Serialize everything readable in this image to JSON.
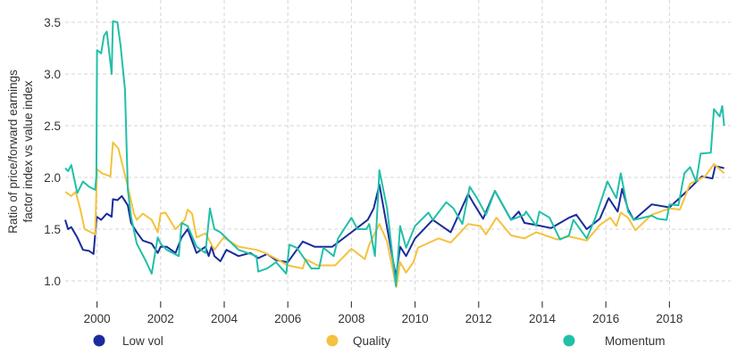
{
  "chart_data": {
    "type": "line",
    "title": "",
    "xlabel": "",
    "ylabel": "Ratio of price/forward earnings factor index vs value index",
    "ylabel_lines": [
      "Ratio of price/forward earnings",
      "factor index vs value index"
    ],
    "xlim": [
      1999.0,
      2019.75
    ],
    "ylim": [
      0.85,
      3.6
    ],
    "x_ticks": [
      2000,
      2002,
      2004,
      2006,
      2008,
      2010,
      2012,
      2014,
      2016,
      2018
    ],
    "x_tick_labels": [
      "2000",
      "2002",
      "2004",
      "2006",
      "2008",
      "2010",
      "2012",
      "2014",
      "2016",
      "2018"
    ],
    "y_ticks": [
      1.0,
      1.5,
      2.0,
      2.5,
      3.0,
      3.5
    ],
    "y_tick_labels": [
      "1.0",
      "1.5",
      "2.0",
      "2.5",
      "3.0",
      "3.5"
    ],
    "grid": true,
    "legend_position": "bottom",
    "series": [
      {
        "name": "Low vol",
        "color": "#1a2b9c",
        "points": [
          [
            1999.0,
            1.59
          ],
          [
            1999.09,
            1.5
          ],
          [
            1999.19,
            1.52
          ],
          [
            1999.38,
            1.42
          ],
          [
            1999.56,
            1.3
          ],
          [
            1999.75,
            1.29
          ],
          [
            1999.89,
            1.26
          ],
          [
            1999.99,
            1.62
          ],
          [
            2000.13,
            1.59
          ],
          [
            2000.31,
            1.65
          ],
          [
            2000.46,
            1.62
          ],
          [
            2000.5,
            1.79
          ],
          [
            2000.64,
            1.78
          ],
          [
            2000.78,
            1.82
          ],
          [
            2000.97,
            1.73
          ],
          [
            2001.07,
            1.56
          ],
          [
            2001.25,
            1.47
          ],
          [
            2001.44,
            1.39
          ],
          [
            2001.72,
            1.36
          ],
          [
            2001.91,
            1.27
          ],
          [
            2002.0,
            1.33
          ],
          [
            2002.19,
            1.33
          ],
          [
            2002.47,
            1.27
          ],
          [
            2002.66,
            1.42
          ],
          [
            2002.85,
            1.5
          ],
          [
            2003.13,
            1.27
          ],
          [
            2003.41,
            1.33
          ],
          [
            2003.51,
            1.24
          ],
          [
            2003.6,
            1.33
          ],
          [
            2003.69,
            1.24
          ],
          [
            2003.88,
            1.19
          ],
          [
            2004.07,
            1.3
          ],
          [
            2004.45,
            1.24
          ],
          [
            2004.82,
            1.27
          ],
          [
            2005.07,
            1.22
          ],
          [
            2005.35,
            1.26
          ],
          [
            2005.63,
            1.2
          ],
          [
            2006.0,
            1.18
          ],
          [
            2006.28,
            1.3
          ],
          [
            2006.47,
            1.38
          ],
          [
            2006.84,
            1.33
          ],
          [
            2007.4,
            1.33
          ],
          [
            2008.0,
            1.47
          ],
          [
            2008.51,
            1.59
          ],
          [
            2008.7,
            1.7
          ],
          [
            2008.88,
            1.93
          ],
          [
            2009.4,
            1.04
          ],
          [
            2009.53,
            1.33
          ],
          [
            2009.72,
            1.24
          ],
          [
            2010.0,
            1.41
          ],
          [
            2010.56,
            1.59
          ],
          [
            2011.12,
            1.47
          ],
          [
            2011.67,
            1.84
          ],
          [
            2011.86,
            1.74
          ],
          [
            2012.14,
            1.6
          ],
          [
            2012.51,
            1.87
          ],
          [
            2013.02,
            1.59
          ],
          [
            2013.26,
            1.67
          ],
          [
            2013.44,
            1.56
          ],
          [
            2013.81,
            1.54
          ],
          [
            2014.28,
            1.51
          ],
          [
            2014.84,
            1.61
          ],
          [
            2015.07,
            1.64
          ],
          [
            2015.4,
            1.5
          ],
          [
            2015.81,
            1.6
          ],
          [
            2016.09,
            1.8
          ],
          [
            2016.37,
            1.67
          ],
          [
            2016.51,
            1.89
          ],
          [
            2016.7,
            1.69
          ],
          [
            2016.88,
            1.59
          ],
          [
            2017.44,
            1.74
          ],
          [
            2018.0,
            1.71
          ],
          [
            2018.56,
            1.87
          ],
          [
            2019.02,
            2.01
          ],
          [
            2019.35,
            1.99
          ],
          [
            2019.44,
            2.11
          ],
          [
            2019.72,
            2.09
          ]
        ]
      },
      {
        "name": "Quality",
        "color": "#f4c23f",
        "points": [
          [
            1999.0,
            1.86
          ],
          [
            1999.19,
            1.82
          ],
          [
            1999.33,
            1.86
          ],
          [
            1999.47,
            1.7
          ],
          [
            1999.61,
            1.5
          ],
          [
            1999.94,
            1.45
          ],
          [
            2000.0,
            2.08
          ],
          [
            2000.16,
            2.04
          ],
          [
            2000.42,
            2.01
          ],
          [
            2000.5,
            2.34
          ],
          [
            2000.67,
            2.28
          ],
          [
            2000.97,
            1.91
          ],
          [
            2001.16,
            1.65
          ],
          [
            2001.25,
            1.59
          ],
          [
            2001.44,
            1.65
          ],
          [
            2001.72,
            1.59
          ],
          [
            2001.91,
            1.47
          ],
          [
            2002.0,
            1.65
          ],
          [
            2002.15,
            1.66
          ],
          [
            2002.47,
            1.5
          ],
          [
            2002.76,
            1.59
          ],
          [
            2002.85,
            1.69
          ],
          [
            2002.99,
            1.65
          ],
          [
            2003.13,
            1.42
          ],
          [
            2003.41,
            1.46
          ],
          [
            2003.69,
            1.3
          ],
          [
            2003.98,
            1.42
          ],
          [
            2004.45,
            1.33
          ],
          [
            2005.01,
            1.3
          ],
          [
            2005.29,
            1.27
          ],
          [
            2005.6,
            1.22
          ],
          [
            2006.0,
            1.15
          ],
          [
            2006.47,
            1.12
          ],
          [
            2006.56,
            1.21
          ],
          [
            2006.93,
            1.15
          ],
          [
            2007.49,
            1.15
          ],
          [
            2008.0,
            1.31
          ],
          [
            2008.42,
            1.21
          ],
          [
            2008.56,
            1.35
          ],
          [
            2008.88,
            1.55
          ],
          [
            2009.12,
            1.38
          ],
          [
            2009.41,
            0.94
          ],
          [
            2009.53,
            1.18
          ],
          [
            2009.72,
            1.08
          ],
          [
            2009.95,
            1.18
          ],
          [
            2010.09,
            1.32
          ],
          [
            2010.74,
            1.41
          ],
          [
            2011.12,
            1.37
          ],
          [
            2011.67,
            1.55
          ],
          [
            2012.05,
            1.53
          ],
          [
            2012.23,
            1.45
          ],
          [
            2012.56,
            1.61
          ],
          [
            2013.02,
            1.44
          ],
          [
            2013.44,
            1.41
          ],
          [
            2013.81,
            1.47
          ],
          [
            2014.47,
            1.4
          ],
          [
            2014.84,
            1.43
          ],
          [
            2015.4,
            1.39
          ],
          [
            2015.81,
            1.54
          ],
          [
            2016.14,
            1.61
          ],
          [
            2016.33,
            1.53
          ],
          [
            2016.47,
            1.66
          ],
          [
            2016.7,
            1.61
          ],
          [
            2016.93,
            1.49
          ],
          [
            2017.44,
            1.64
          ],
          [
            2018.0,
            1.7
          ],
          [
            2018.33,
            1.69
          ],
          [
            2018.65,
            1.94
          ],
          [
            2019.12,
            2.01
          ],
          [
            2019.4,
            2.13
          ],
          [
            2019.72,
            2.04
          ]
        ]
      },
      {
        "name": "Momentum",
        "color": "#22bfa8",
        "points": [
          [
            1999.0,
            2.09
          ],
          [
            1999.09,
            2.06
          ],
          [
            1999.19,
            2.12
          ],
          [
            1999.38,
            1.85
          ],
          [
            1999.56,
            1.96
          ],
          [
            1999.75,
            1.91
          ],
          [
            1999.94,
            1.88
          ],
          [
            1999.98,
            2.02
          ],
          [
            2000.0,
            3.23
          ],
          [
            2000.13,
            3.2
          ],
          [
            2000.22,
            3.37
          ],
          [
            2000.31,
            3.41
          ],
          [
            2000.46,
            3.0
          ],
          [
            2000.5,
            3.51
          ],
          [
            2000.64,
            3.5
          ],
          [
            2000.74,
            3.28
          ],
          [
            2000.88,
            2.85
          ],
          [
            2000.97,
            1.88
          ],
          [
            2001.07,
            1.62
          ],
          [
            2001.25,
            1.36
          ],
          [
            2001.54,
            1.19
          ],
          [
            2001.72,
            1.07
          ],
          [
            2001.91,
            1.42
          ],
          [
            2002.0,
            1.36
          ],
          [
            2002.19,
            1.3
          ],
          [
            2002.57,
            1.24
          ],
          [
            2002.66,
            1.56
          ],
          [
            2002.85,
            1.53
          ],
          [
            2003.13,
            1.33
          ],
          [
            2003.41,
            1.27
          ],
          [
            2003.55,
            1.7
          ],
          [
            2003.69,
            1.5
          ],
          [
            2003.88,
            1.47
          ],
          [
            2004.45,
            1.3
          ],
          [
            2005.01,
            1.24
          ],
          [
            2005.07,
            1.09
          ],
          [
            2005.35,
            1.12
          ],
          [
            2005.63,
            1.18
          ],
          [
            2005.95,
            1.07
          ],
          [
            2006.05,
            1.35
          ],
          [
            2006.28,
            1.32
          ],
          [
            2006.74,
            1.12
          ],
          [
            2006.98,
            1.12
          ],
          [
            2007.12,
            1.32
          ],
          [
            2007.44,
            1.24
          ],
          [
            2007.58,
            1.41
          ],
          [
            2008.0,
            1.61
          ],
          [
            2008.19,
            1.5
          ],
          [
            2008.47,
            1.5
          ],
          [
            2008.56,
            1.55
          ],
          [
            2008.74,
            1.24
          ],
          [
            2008.88,
            2.07
          ],
          [
            2009.12,
            1.7
          ],
          [
            2009.4,
            0.95
          ],
          [
            2009.53,
            1.53
          ],
          [
            2009.72,
            1.32
          ],
          [
            2010.0,
            1.53
          ],
          [
            2010.42,
            1.66
          ],
          [
            2010.56,
            1.59
          ],
          [
            2010.98,
            1.76
          ],
          [
            2011.21,
            1.7
          ],
          [
            2011.49,
            1.55
          ],
          [
            2011.72,
            1.91
          ],
          [
            2011.95,
            1.8
          ],
          [
            2012.23,
            1.64
          ],
          [
            2012.51,
            1.87
          ],
          [
            2013.02,
            1.59
          ],
          [
            2013.44,
            1.64
          ],
          [
            2013.49,
            1.67
          ],
          [
            2013.81,
            1.53
          ],
          [
            2013.91,
            1.67
          ],
          [
            2014.23,
            1.61
          ],
          [
            2014.56,
            1.4
          ],
          [
            2014.84,
            1.44
          ],
          [
            2014.98,
            1.59
          ],
          [
            2015.4,
            1.41
          ],
          [
            2015.67,
            1.61
          ],
          [
            2016.05,
            1.96
          ],
          [
            2016.33,
            1.8
          ],
          [
            2016.47,
            2.04
          ],
          [
            2016.7,
            1.67
          ],
          [
            2016.88,
            1.59
          ],
          [
            2017.44,
            1.63
          ],
          [
            2017.63,
            1.6
          ],
          [
            2017.91,
            1.59
          ],
          [
            2018.0,
            1.74
          ],
          [
            2018.28,
            1.73
          ],
          [
            2018.47,
            2.04
          ],
          [
            2018.65,
            2.1
          ],
          [
            2018.84,
            1.96
          ],
          [
            2018.98,
            2.23
          ],
          [
            2019.3,
            2.24
          ],
          [
            2019.4,
            2.66
          ],
          [
            2019.58,
            2.59
          ],
          [
            2019.66,
            2.69
          ],
          [
            2019.72,
            2.5
          ]
        ]
      }
    ]
  }
}
